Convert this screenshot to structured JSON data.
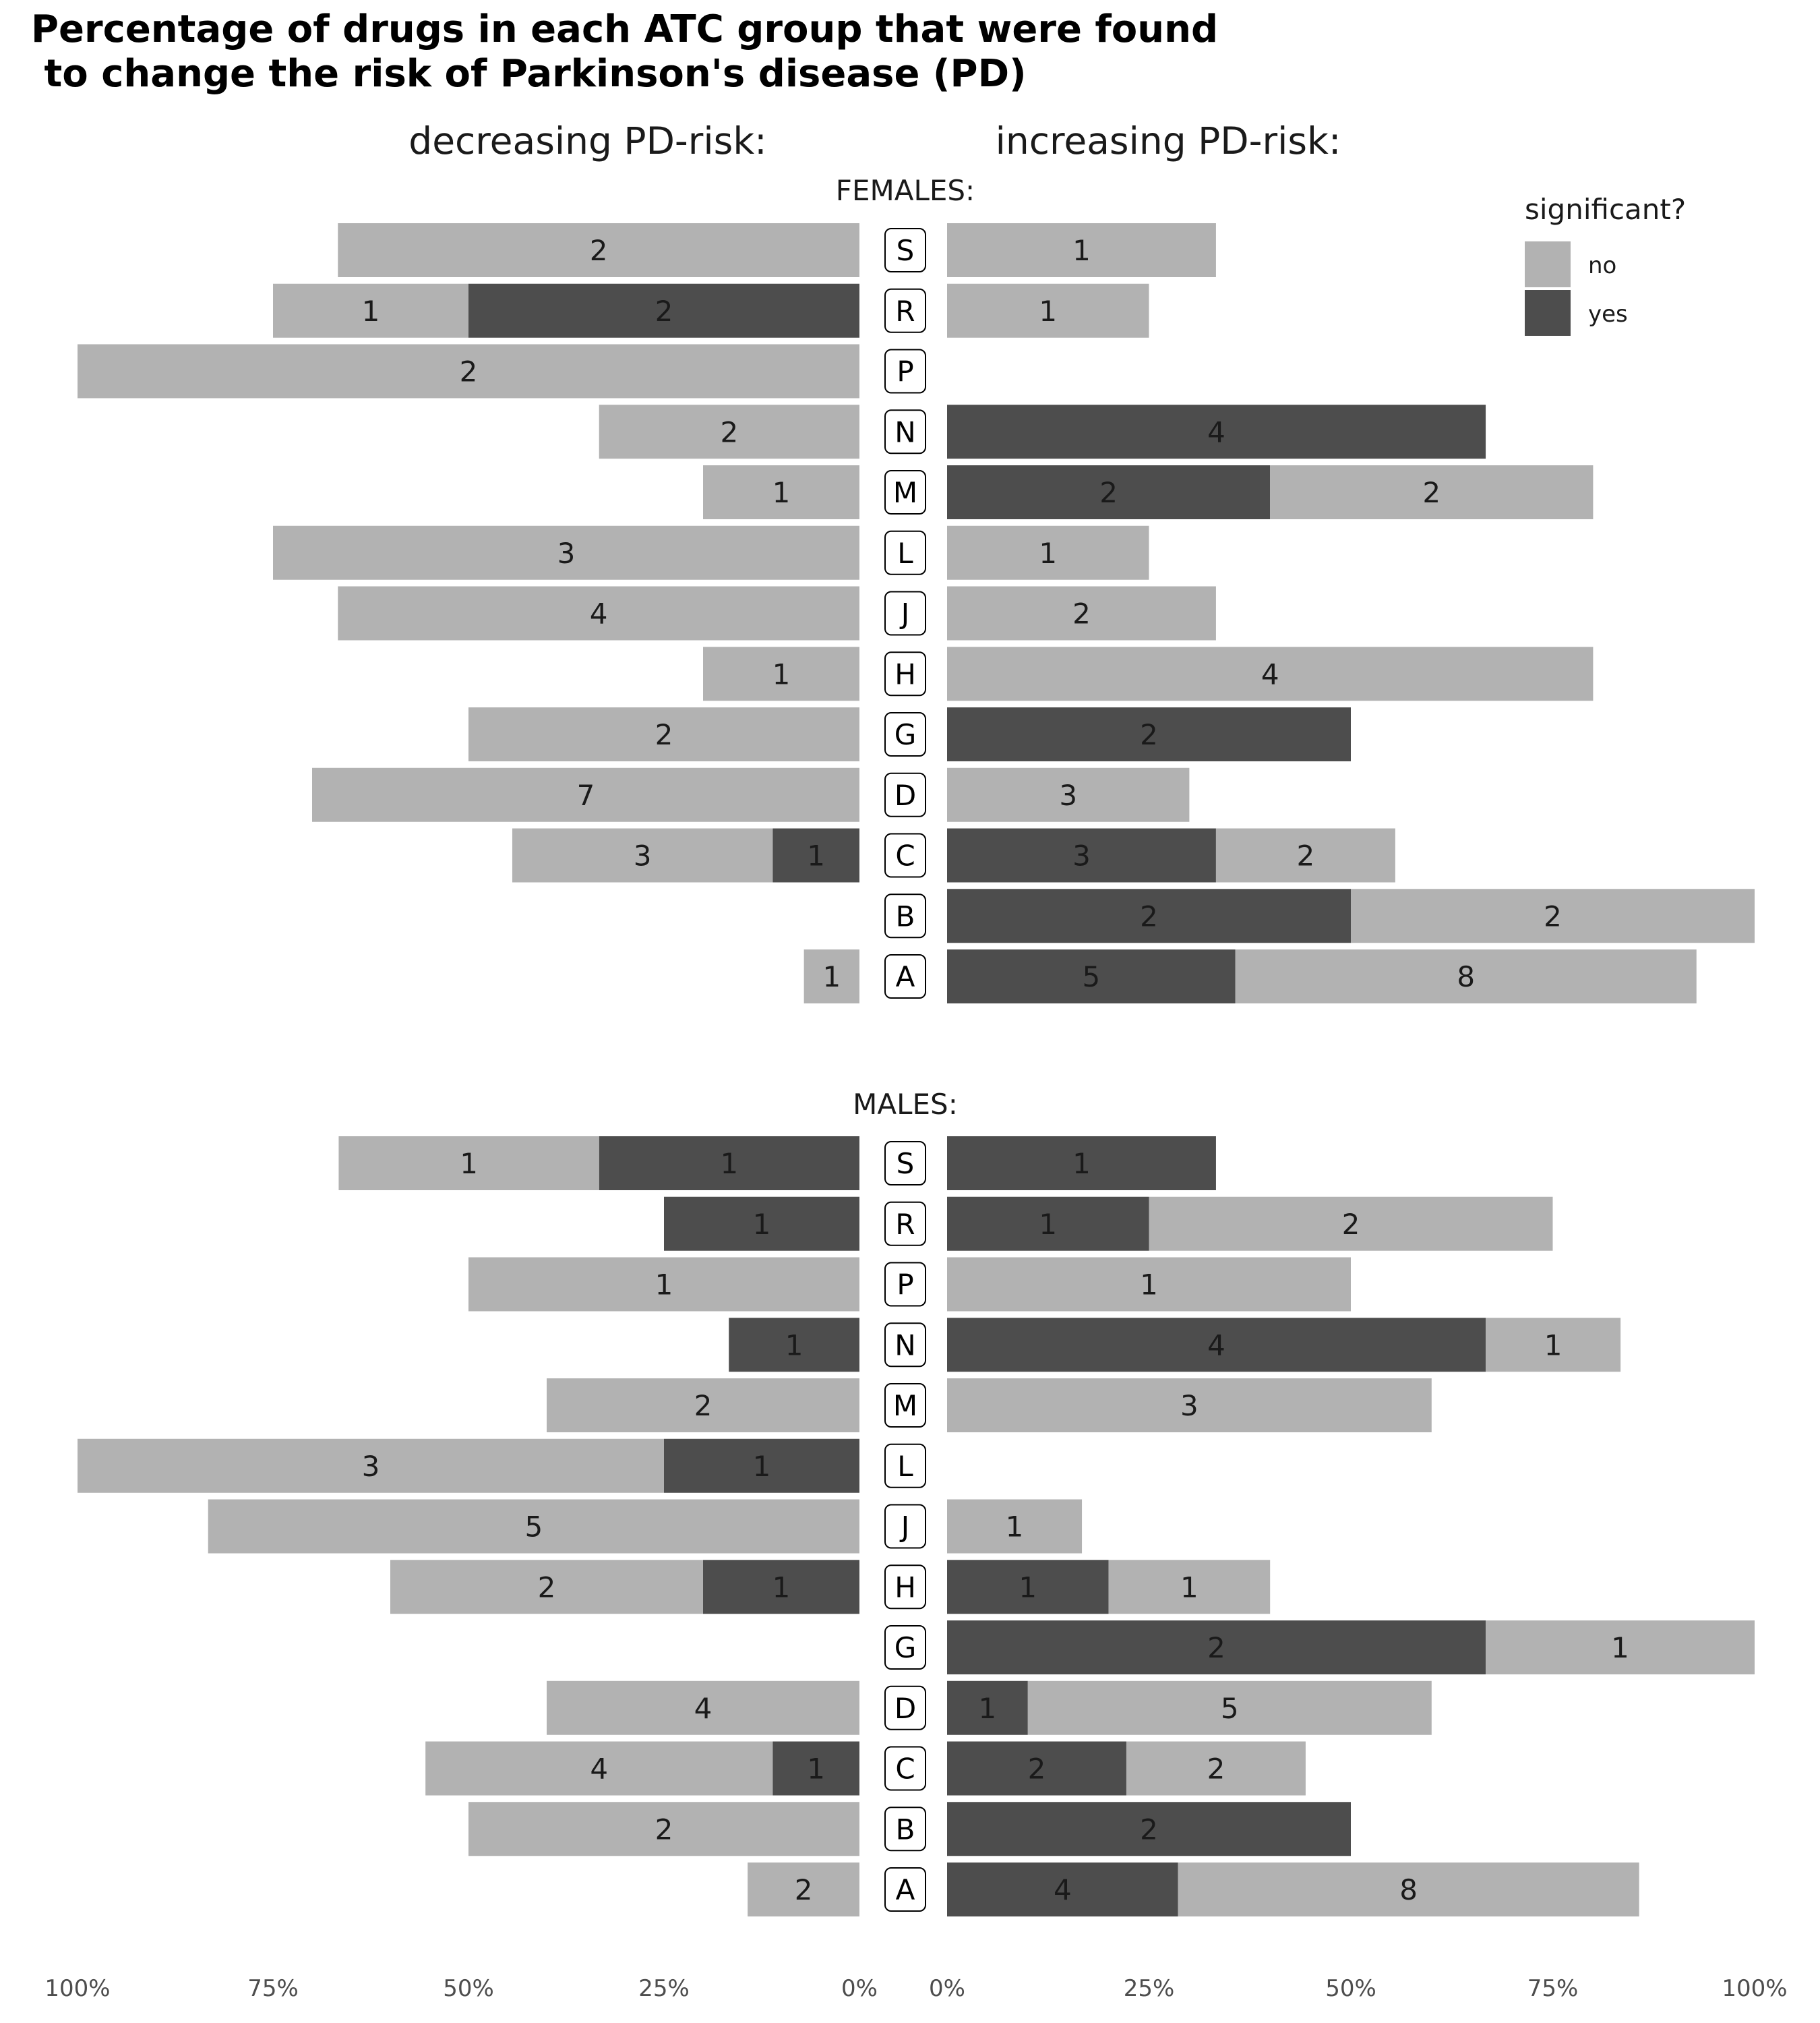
{
  "chart_data": {
    "type": "bar",
    "title_line1": "Percentage of drugs in each ATC group that were found",
    "title_line2": " to change the risk of Parkinson's disease (PD)",
    "left_heading": "decreasing PD-risk:",
    "right_heading": "increasing PD-risk:",
    "categories": [
      "S",
      "R",
      "P",
      "N",
      "M",
      "L",
      "J",
      "H",
      "G",
      "D",
      "C",
      "B",
      "A"
    ],
    "x_ticks_left": [
      "100%",
      "75%",
      "50%",
      "25%",
      "0%"
    ],
    "x_ticks_right": [
      "0%",
      "25%",
      "50%",
      "75%",
      "100%"
    ],
    "xlim_percent": [
      0,
      100
    ],
    "legend": {
      "title": "significant?",
      "position": "top-right",
      "items": [
        {
          "label": "no",
          "color": "#b2b2b2"
        },
        {
          "label": "yes",
          "color": "#4d4d4d"
        }
      ]
    },
    "colors": {
      "no": "#b2b2b2",
      "yes": "#4d4d4d"
    },
    "panels": [
      {
        "label": "FEMALES:",
        "rows": [
          {
            "cat": "S",
            "decreasing": {
              "yes_pct": 0,
              "yes_n": 0,
              "no_pct": 66.7,
              "no_n": 2
            },
            "increasing": {
              "yes_pct": 0,
              "yes_n": 0,
              "no_pct": 33.3,
              "no_n": 1
            }
          },
          {
            "cat": "R",
            "decreasing": {
              "yes_pct": 50,
              "yes_n": 2,
              "no_pct": 25,
              "no_n": 1
            },
            "increasing": {
              "yes_pct": 0,
              "yes_n": 0,
              "no_pct": 25,
              "no_n": 1
            }
          },
          {
            "cat": "P",
            "decreasing": {
              "yes_pct": 0,
              "yes_n": 0,
              "no_pct": 100,
              "no_n": 2
            },
            "increasing": {
              "yes_pct": 0,
              "yes_n": 0,
              "no_pct": 0,
              "no_n": 0
            }
          },
          {
            "cat": "N",
            "decreasing": {
              "yes_pct": 0,
              "yes_n": 0,
              "no_pct": 33.3,
              "no_n": 2
            },
            "increasing": {
              "yes_pct": 66.7,
              "yes_n": 4,
              "no_pct": 0,
              "no_n": 0
            }
          },
          {
            "cat": "M",
            "decreasing": {
              "yes_pct": 0,
              "yes_n": 0,
              "no_pct": 20,
              "no_n": 1
            },
            "increasing": {
              "yes_pct": 40,
              "yes_n": 2,
              "no_pct": 40,
              "no_n": 2
            }
          },
          {
            "cat": "L",
            "decreasing": {
              "yes_pct": 0,
              "yes_n": 0,
              "no_pct": 75,
              "no_n": 3
            },
            "increasing": {
              "yes_pct": 0,
              "yes_n": 0,
              "no_pct": 25,
              "no_n": 1
            }
          },
          {
            "cat": "J",
            "decreasing": {
              "yes_pct": 0,
              "yes_n": 0,
              "no_pct": 66.7,
              "no_n": 4
            },
            "increasing": {
              "yes_pct": 0,
              "yes_n": 0,
              "no_pct": 33.3,
              "no_n": 2
            }
          },
          {
            "cat": "H",
            "decreasing": {
              "yes_pct": 0,
              "yes_n": 0,
              "no_pct": 20,
              "no_n": 1
            },
            "increasing": {
              "yes_pct": 0,
              "yes_n": 0,
              "no_pct": 80,
              "no_n": 4
            }
          },
          {
            "cat": "G",
            "decreasing": {
              "yes_pct": 0,
              "yes_n": 0,
              "no_pct": 50,
              "no_n": 2
            },
            "increasing": {
              "yes_pct": 50,
              "yes_n": 2,
              "no_pct": 0,
              "no_n": 0
            }
          },
          {
            "cat": "D",
            "decreasing": {
              "yes_pct": 0,
              "yes_n": 0,
              "no_pct": 70,
              "no_n": 7
            },
            "increasing": {
              "yes_pct": 0,
              "yes_n": 0,
              "no_pct": 30,
              "no_n": 3
            }
          },
          {
            "cat": "C",
            "decreasing": {
              "yes_pct": 11.1,
              "yes_n": 1,
              "no_pct": 33.3,
              "no_n": 3
            },
            "increasing": {
              "yes_pct": 33.3,
              "yes_n": 3,
              "no_pct": 22.2,
              "no_n": 2
            }
          },
          {
            "cat": "B",
            "decreasing": {
              "yes_pct": 0,
              "yes_n": 0,
              "no_pct": 0,
              "no_n": 0
            },
            "increasing": {
              "yes_pct": 50,
              "yes_n": 2,
              "no_pct": 50,
              "no_n": 2
            }
          },
          {
            "cat": "A",
            "decreasing": {
              "yes_pct": 0,
              "yes_n": 0,
              "no_pct": 7.1,
              "no_n": 1
            },
            "increasing": {
              "yes_pct": 35.7,
              "yes_n": 5,
              "no_pct": 57.1,
              "no_n": 8
            }
          }
        ]
      },
      {
        "label": "MALES:",
        "rows": [
          {
            "cat": "S",
            "decreasing": {
              "yes_pct": 33.3,
              "yes_n": 1,
              "no_pct": 33.3,
              "no_n": 1
            },
            "increasing": {
              "yes_pct": 33.3,
              "yes_n": 1,
              "no_pct": 0,
              "no_n": 0
            }
          },
          {
            "cat": "R",
            "decreasing": {
              "yes_pct": 25,
              "yes_n": 1,
              "no_pct": 0,
              "no_n": 0
            },
            "increasing": {
              "yes_pct": 25,
              "yes_n": 1,
              "no_pct": 50,
              "no_n": 2
            }
          },
          {
            "cat": "P",
            "decreasing": {
              "yes_pct": 0,
              "yes_n": 0,
              "no_pct": 50,
              "no_n": 1
            },
            "increasing": {
              "yes_pct": 0,
              "yes_n": 0,
              "no_pct": 50,
              "no_n": 1
            }
          },
          {
            "cat": "N",
            "decreasing": {
              "yes_pct": 16.7,
              "yes_n": 1,
              "no_pct": 0,
              "no_n": 0
            },
            "increasing": {
              "yes_pct": 66.7,
              "yes_n": 4,
              "no_pct": 16.7,
              "no_n": 1
            }
          },
          {
            "cat": "M",
            "decreasing": {
              "yes_pct": 0,
              "yes_n": 0,
              "no_pct": 40,
              "no_n": 2
            },
            "increasing": {
              "yes_pct": 0,
              "yes_n": 0,
              "no_pct": 60,
              "no_n": 3
            }
          },
          {
            "cat": "L",
            "decreasing": {
              "yes_pct": 25,
              "yes_n": 1,
              "no_pct": 75,
              "no_n": 3
            },
            "increasing": {
              "yes_pct": 0,
              "yes_n": 0,
              "no_pct": 0,
              "no_n": 0
            }
          },
          {
            "cat": "J",
            "decreasing": {
              "yes_pct": 0,
              "yes_n": 0,
              "no_pct": 83.3,
              "no_n": 5
            },
            "increasing": {
              "yes_pct": 0,
              "yes_n": 0,
              "no_pct": 16.7,
              "no_n": 1
            }
          },
          {
            "cat": "H",
            "decreasing": {
              "yes_pct": 20,
              "yes_n": 1,
              "no_pct": 40,
              "no_n": 2
            },
            "increasing": {
              "yes_pct": 20,
              "yes_n": 1,
              "no_pct": 20,
              "no_n": 1
            }
          },
          {
            "cat": "G",
            "decreasing": {
              "yes_pct": 0,
              "yes_n": 0,
              "no_pct": 0,
              "no_n": 0
            },
            "increasing": {
              "yes_pct": 66.7,
              "yes_n": 2,
              "no_pct": 33.3,
              "no_n": 1
            }
          },
          {
            "cat": "D",
            "decreasing": {
              "yes_pct": 0,
              "yes_n": 0,
              "no_pct": 40,
              "no_n": 4
            },
            "increasing": {
              "yes_pct": 10,
              "yes_n": 1,
              "no_pct": 50,
              "no_n": 5
            }
          },
          {
            "cat": "C",
            "decreasing": {
              "yes_pct": 11.1,
              "yes_n": 1,
              "no_pct": 44.4,
              "no_n": 4
            },
            "increasing": {
              "yes_pct": 22.2,
              "yes_n": 2,
              "no_pct": 22.2,
              "no_n": 2
            }
          },
          {
            "cat": "B",
            "decreasing": {
              "yes_pct": 0,
              "yes_n": 0,
              "no_pct": 50,
              "no_n": 2
            },
            "increasing": {
              "yes_pct": 50,
              "yes_n": 2,
              "no_pct": 0,
              "no_n": 0
            }
          },
          {
            "cat": "A",
            "decreasing": {
              "yes_pct": 0,
              "yes_n": 0,
              "no_pct": 14.3,
              "no_n": 2
            },
            "increasing": {
              "yes_pct": 28.6,
              "yes_n": 4,
              "no_pct": 57.1,
              "no_n": 8
            }
          }
        ]
      }
    ]
  }
}
